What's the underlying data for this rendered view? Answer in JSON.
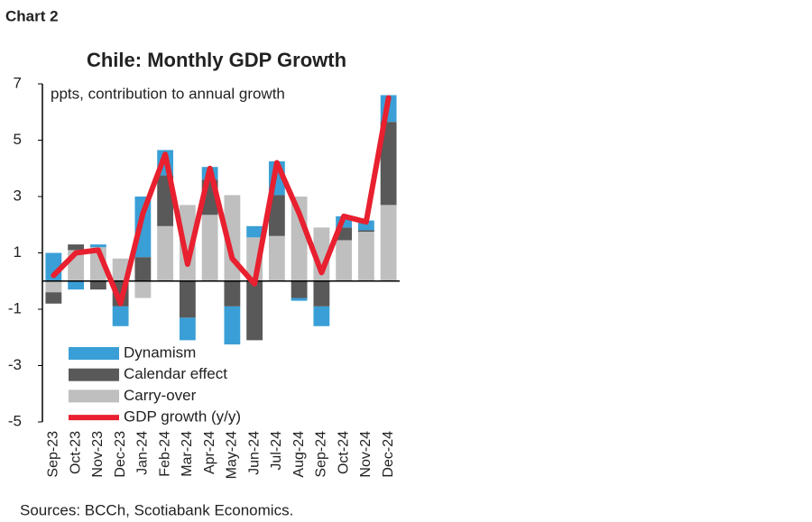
{
  "chart_label": "Chart 2",
  "source": "Sources: BCCh, Scotiabank Economics.",
  "chart_data": {
    "type": "bar",
    "title": "Chile: Monthly GDP Growth",
    "subtitle": "ppts, contribution to annual growth",
    "categories": [
      "Sep-23",
      "Oct-23",
      "Nov-23",
      "Dec-23",
      "Jan-24",
      "Feb-24",
      "Mar-24",
      "Apr-24",
      "May-24",
      "Jun-24",
      "Jul-24",
      "Aug-24",
      "Sep-24",
      "Oct-24",
      "Nov-24",
      "Dec-24"
    ],
    "stacked": true,
    "ylim": [
      -5,
      7
    ],
    "yticks": [
      -5,
      -3,
      -1,
      1,
      3,
      5,
      7
    ],
    "legend": "lower-left",
    "series": [
      {
        "name": "Dynamism",
        "color": "#3a9fd6",
        "values": [
          1.0,
          -0.3,
          0.1,
          -0.7,
          2.15,
          0.9,
          -0.8,
          0.45,
          -1.35,
          0.4,
          1.2,
          -0.1,
          -0.7,
          0.4,
          0.35,
          0.95
        ]
      },
      {
        "name": "Calendar effect",
        "color": "#595959",
        "values": [
          -0.4,
          0.2,
          -0.3,
          -0.9,
          0.85,
          1.8,
          -1.3,
          1.25,
          -0.9,
          -2.1,
          1.45,
          -0.6,
          -0.9,
          0.45,
          0.05,
          2.95
        ]
      },
      {
        "name": "Carry-over",
        "color": "#bfbfbf",
        "values": [
          -0.4,
          1.1,
          1.2,
          0.8,
          -0.6,
          1.95,
          2.7,
          2.35,
          3.05,
          1.55,
          1.6,
          3.0,
          1.9,
          1.45,
          1.75,
          2.7
        ]
      },
      {
        "name": "GDP growth (y/y)",
        "type": "line",
        "color": "#e8202f",
        "values": [
          0.2,
          1.0,
          1.1,
          -0.8,
          2.4,
          4.5,
          0.6,
          4.0,
          0.8,
          -0.1,
          4.2,
          2.4,
          0.3,
          2.3,
          2.1,
          6.5
        ]
      }
    ]
  }
}
